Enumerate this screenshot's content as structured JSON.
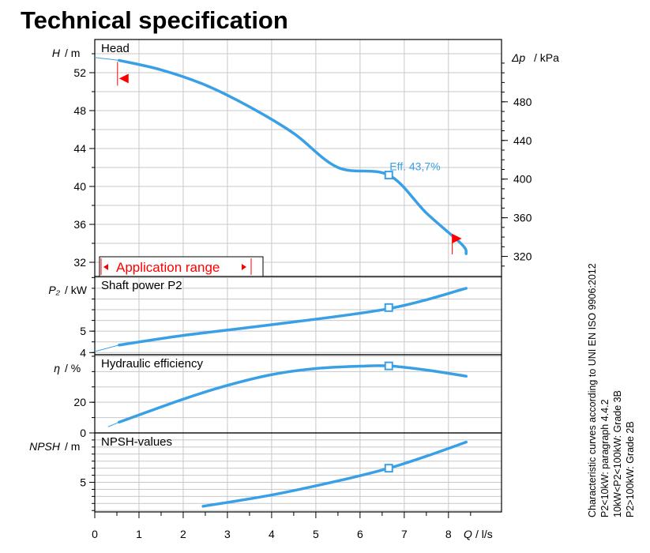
{
  "title": "Technical specification",
  "colors": {
    "curve": "#3aa0e6",
    "axis": "#000000",
    "grid": "#c8c8c8",
    "marker": "#ff0000"
  },
  "notes": [
    "Characteristic curves according to UNI EN ISO 9906:2012",
    "P2<10kW:  paragraph 4.4.2",
    "10kW<P2<100kW: Grade 3B",
    "P2>100kW: Grade 2B"
  ],
  "chart_data": {
    "type": "line",
    "x_axis": {
      "label": "Q",
      "unit": "l/s",
      "range": [
        0,
        9.2
      ],
      "ticks": [
        0,
        1,
        2,
        3,
        4,
        5,
        6,
        7,
        8
      ]
    },
    "application_range": {
      "label": "Application range",
      "q_min": 0.55,
      "q_max": 8.3
    },
    "duty_point_q": 6.65,
    "panels": [
      {
        "id": "head",
        "panel_label": "Head",
        "ylabel": "H",
        "yunit": "m",
        "ylim": [
          30.5,
          55.5
        ],
        "yticks": [
          32,
          36,
          40,
          44,
          48,
          52
        ],
        "right_axis": {
          "label": "Δp",
          "unit": "kPa",
          "ticks": [
            320,
            360,
            400,
            440,
            480
          ]
        },
        "lead_in": {
          "x": [
            0,
            0.55
          ],
          "y": [
            53.6,
            53.3
          ]
        },
        "series": [
          {
            "x": [
              0.55,
              1.5,
              2.5,
              3.5,
              4.5,
              5.5,
              6.65,
              7.5,
              8.3,
              8.4
            ],
            "y": [
              53.3,
              52.3,
              50.7,
              48.4,
              45.6,
              42.0,
              41.2,
              37.2,
              33.9,
              32.9
            ]
          }
        ],
        "annotation": "Eff.  43,7%",
        "duty_point_value": 41.2
      },
      {
        "id": "power",
        "panel_label": "Shaft power P2",
        "ylabel": "P₂",
        "yunit": "kW",
        "ylim": [
          3.9,
          7.55
        ],
        "yticks": [
          4,
          5
        ],
        "lead_in": {
          "x": [
            0,
            0.55
          ],
          "y": [
            4.05,
            4.35
          ]
        },
        "series": [
          {
            "x": [
              0.55,
              2,
              4,
              6.65,
              8.4
            ],
            "y": [
              4.35,
              4.8,
              5.3,
              6.05,
              7.0
            ]
          }
        ],
        "duty_point_value": 6.1
      },
      {
        "id": "efficiency",
        "panel_label": "Hydraulic efficiency",
        "ylabel": "η",
        "yunit": "%",
        "ylim": [
          0,
          51
        ],
        "yticks": [
          0,
          20
        ],
        "lead_in": {
          "x": [
            0.3,
            0.55
          ],
          "y": [
            4,
            7
          ]
        },
        "series": [
          {
            "x": [
              0.55,
              2,
              3,
              4,
              5,
              6,
              6.65,
              7.5,
              8.4
            ],
            "y": [
              7,
              22,
              31,
              38,
              42,
              43.5,
              43.7,
              41,
              37
            ]
          }
        ],
        "duty_point_value": 43.7
      },
      {
        "id": "npsh",
        "panel_label": "NPSH-values",
        "ylabel": "NPSH",
        "yunit": "m",
        "ylim": [
          0.8,
          12.0
        ],
        "yticks": [
          5
        ],
        "series": [
          {
            "x": [
              2.45,
              4,
              5.5,
              6.65,
              7.5,
              8.4
            ],
            "y": [
              1.6,
              3.2,
              5.2,
              7.0,
              8.7,
              10.7
            ]
          }
        ],
        "duty_point_value": 7.0
      }
    ]
  }
}
